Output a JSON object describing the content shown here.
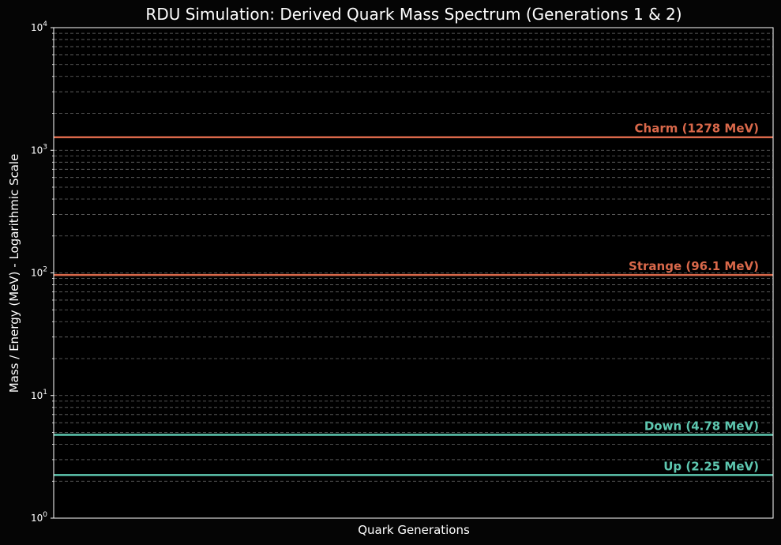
{
  "chart_data": {
    "type": "line",
    "title": "RDU Simulation: Derived Quark Mass Spectrum (Generations 1 & 2)",
    "xlabel": "Quark Generations",
    "ylabel": "Mass / Energy (MeV) - Logarithmic Scale",
    "yscale": "log",
    "ylim": [
      1,
      10000
    ],
    "grid": true,
    "background": "#050505",
    "y_ticks": [
      {
        "base": "10",
        "exp": "0",
        "value": 1
      },
      {
        "base": "10",
        "exp": "1",
        "value": 10
      },
      {
        "base": "10",
        "exp": "2",
        "value": 100
      },
      {
        "base": "10",
        "exp": "3",
        "value": 1000
      },
      {
        "base": "10",
        "exp": "4",
        "value": 10000
      }
    ],
    "series": [
      {
        "label": "Up (2.25 MeV)",
        "value": 2.25,
        "color": "#5ec7b0"
      },
      {
        "label": "Down (4.78 MeV)",
        "value": 4.78,
        "color": "#5ec7b0"
      },
      {
        "label": "Strange (96.1 MeV)",
        "value": 96.1,
        "color": "#d9684a"
      },
      {
        "label": "Charm (1278 MeV)",
        "value": 1278,
        "color": "#d9684a"
      }
    ]
  }
}
